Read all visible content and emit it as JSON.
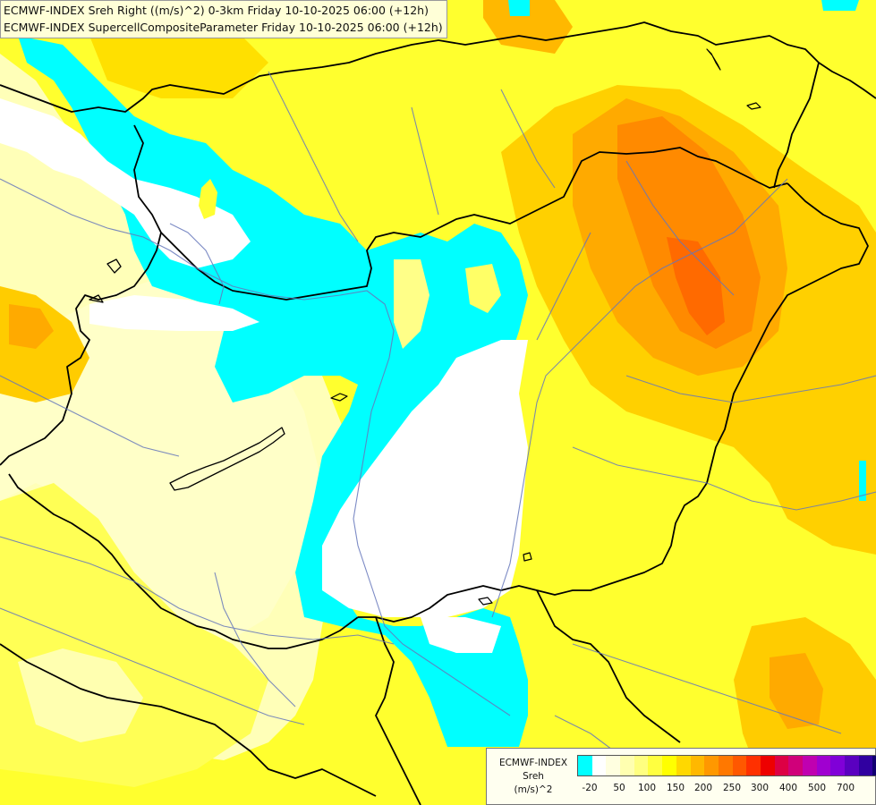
{
  "title_lines": [
    "ECMWF-INDEX Sreh Right ((m/s)^2) 0-3km Friday 10-10-2025 06:00 (+12h)",
    "ECMWF-INDEX SupercellCompositeParameter Friday 10-10-2025 06:00 (+12h)"
  ],
  "legend": {
    "title_line1": "ECMWF-INDEX",
    "title_line2": "Sreh",
    "title_line3": "(m/s)^2",
    "colors": [
      "#00ffff",
      "#ffffff",
      "#ffffe0",
      "#ffffb0",
      "#ffff80",
      "#ffff40",
      "#ffff00",
      "#ffd800",
      "#ffb800",
      "#ff9800",
      "#ff7800",
      "#ff5800",
      "#ff3000",
      "#ee0000",
      "#dd0044",
      "#d0007a",
      "#c000b0",
      "#a000d0",
      "#8000d8",
      "#5a00c0",
      "#3000a0",
      "#100070"
    ],
    "ticks": [
      "-20",
      "50",
      "100",
      "150",
      "200",
      "250",
      "300",
      "400",
      "500",
      "700"
    ]
  },
  "colors": {
    "background_yellow": "#ffff33",
    "light_yellow": "#ffffc0",
    "cyan": "#00ffff",
    "orange": "#ffb000",
    "dark_orange": "#ff7a00",
    "border_line": "#000000",
    "river_line": "#6b7fc0"
  }
}
